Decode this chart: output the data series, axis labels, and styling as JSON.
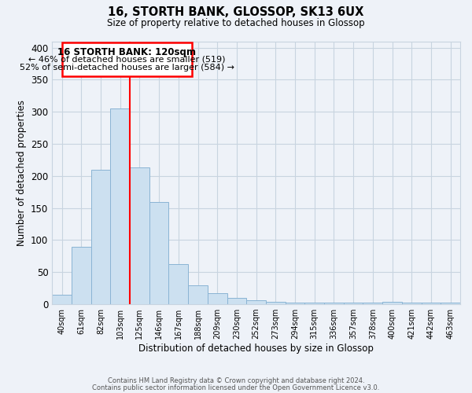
{
  "title": "16, STORTH BANK, GLOSSOP, SK13 6UX",
  "subtitle": "Size of property relative to detached houses in Glossop",
  "xlabel": "Distribution of detached houses by size in Glossop",
  "ylabel": "Number of detached properties",
  "bar_color": "#cce0f0",
  "bar_edge_color": "#8ab4d4",
  "background_color": "#eef2f8",
  "plot_bg_color": "#eef2f8",
  "tick_labels": [
    "40sqm",
    "61sqm",
    "82sqm",
    "103sqm",
    "125sqm",
    "146sqm",
    "167sqm",
    "188sqm",
    "209sqm",
    "230sqm",
    "252sqm",
    "273sqm",
    "294sqm",
    "315sqm",
    "336sqm",
    "357sqm",
    "378sqm",
    "400sqm",
    "421sqm",
    "442sqm",
    "463sqm"
  ],
  "bar_values": [
    15,
    90,
    210,
    305,
    213,
    160,
    63,
    30,
    17,
    10,
    6,
    4,
    3,
    2,
    2,
    2,
    2,
    4,
    3,
    3,
    2
  ],
  "vline_x": 4.0,
  "vline_label": "16 STORTH BANK: 120sqm",
  "annotation_line1": "← 46% of detached houses are smaller (519)",
  "annotation_line2": "52% of semi-detached houses are larger (584) →",
  "ylim": [
    0,
    410
  ],
  "yticks": [
    0,
    50,
    100,
    150,
    200,
    250,
    300,
    350,
    400
  ],
  "grid_color": "#c8d4e0",
  "footnote1": "Contains HM Land Registry data © Crown copyright and database right 2024.",
  "footnote2": "Contains public sector information licensed under the Open Government Licence v3.0."
}
